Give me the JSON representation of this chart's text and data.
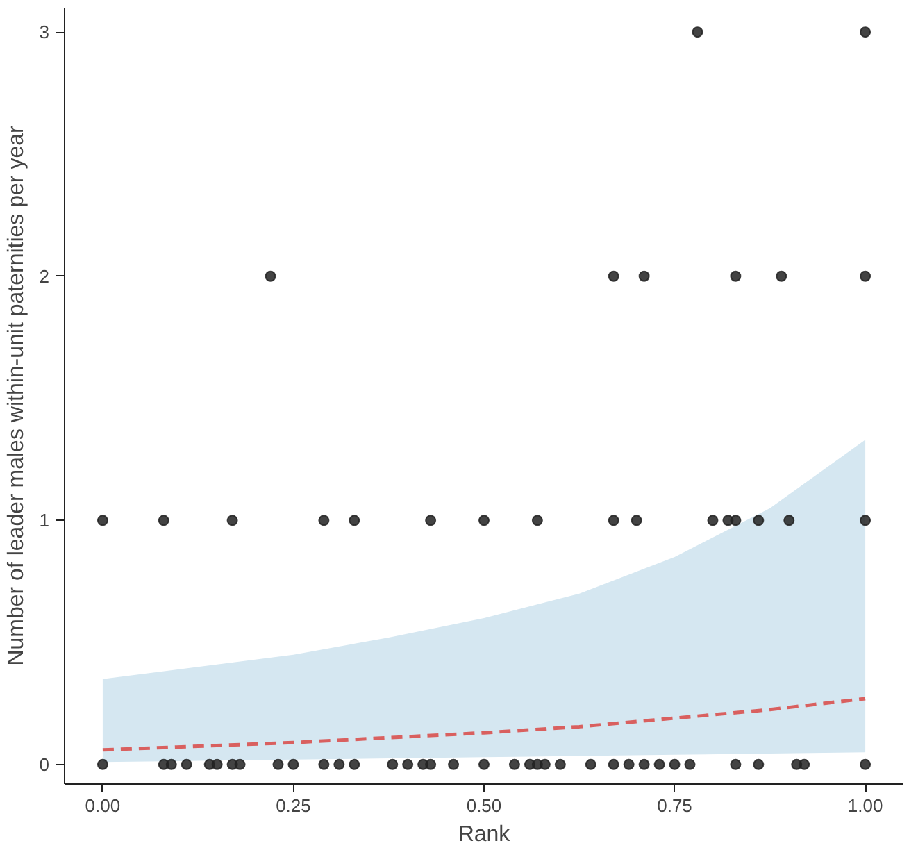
{
  "chart_data": {
    "type": "scatter",
    "xlabel": "Rank",
    "ylabel": "Number of leader males within-unit paternities per year",
    "xlim": [
      -0.05,
      1.05
    ],
    "ylim": [
      -0.08,
      3.1
    ],
    "xticks": [
      {
        "value": 0,
        "label": "0.00"
      },
      {
        "value": 0.25,
        "label": "0.25"
      },
      {
        "value": 0.5,
        "label": "0.50"
      },
      {
        "value": 0.75,
        "label": "0.75"
      },
      {
        "value": 1,
        "label": "1.00"
      }
    ],
    "yticks": [
      0,
      1,
      2,
      3
    ],
    "grid": false,
    "marker": "circle",
    "series": [
      {
        "color": "#222222",
        "x": [
          0.0,
          0.08,
          0.09,
          0.11,
          0.14,
          0.15,
          0.17,
          0.18,
          0.23,
          0.25,
          0.29,
          0.31,
          0.33,
          0.38,
          0.4,
          0.42,
          0.43,
          0.46,
          0.5,
          0.54,
          0.56,
          0.57,
          0.58,
          0.6,
          0.64,
          0.67,
          0.69,
          0.71,
          0.73,
          0.75,
          0.77,
          0.83,
          0.86,
          0.91,
          0.92,
          1.0,
          0.0,
          0.08,
          0.17,
          0.29,
          0.33,
          0.43,
          0.5,
          0.57,
          0.67,
          0.7,
          0.8,
          0.82,
          0.83,
          0.86,
          0.9,
          1.0,
          0.22,
          0.67,
          0.71,
          0.83,
          0.89,
          1.0,
          0.78,
          1.0
        ],
        "values": [
          0,
          0,
          0,
          0,
          0,
          0,
          0,
          0,
          0,
          0,
          0,
          0,
          0,
          0,
          0,
          0,
          0,
          0,
          0,
          0,
          0,
          0,
          0,
          0,
          0,
          0,
          0,
          0,
          0,
          0,
          0,
          0,
          0,
          0,
          0,
          0,
          1,
          1,
          1,
          1,
          1,
          1,
          1,
          1,
          1,
          1,
          1,
          1,
          1,
          1,
          1,
          1,
          2,
          2,
          2,
          2,
          2,
          2,
          3,
          3
        ]
      },
      {
        "type": "line",
        "color": "#d9605f",
        "line_style": "dashed",
        "marker": "none",
        "x": [
          0,
          0.125,
          0.25,
          0.375,
          0.5,
          0.625,
          0.75,
          0.875,
          1
        ],
        "values": [
          0.06,
          0.075,
          0.09,
          0.11,
          0.13,
          0.155,
          0.19,
          0.225,
          0.27
        ],
        "lower": [
          0.01,
          0.015,
          0.02,
          0.025,
          0.03,
          0.035,
          0.04,
          0.045,
          0.05
        ],
        "upper": [
          0.35,
          0.4,
          0.45,
          0.52,
          0.6,
          0.7,
          0.85,
          1.05,
          1.33
        ]
      }
    ]
  }
}
